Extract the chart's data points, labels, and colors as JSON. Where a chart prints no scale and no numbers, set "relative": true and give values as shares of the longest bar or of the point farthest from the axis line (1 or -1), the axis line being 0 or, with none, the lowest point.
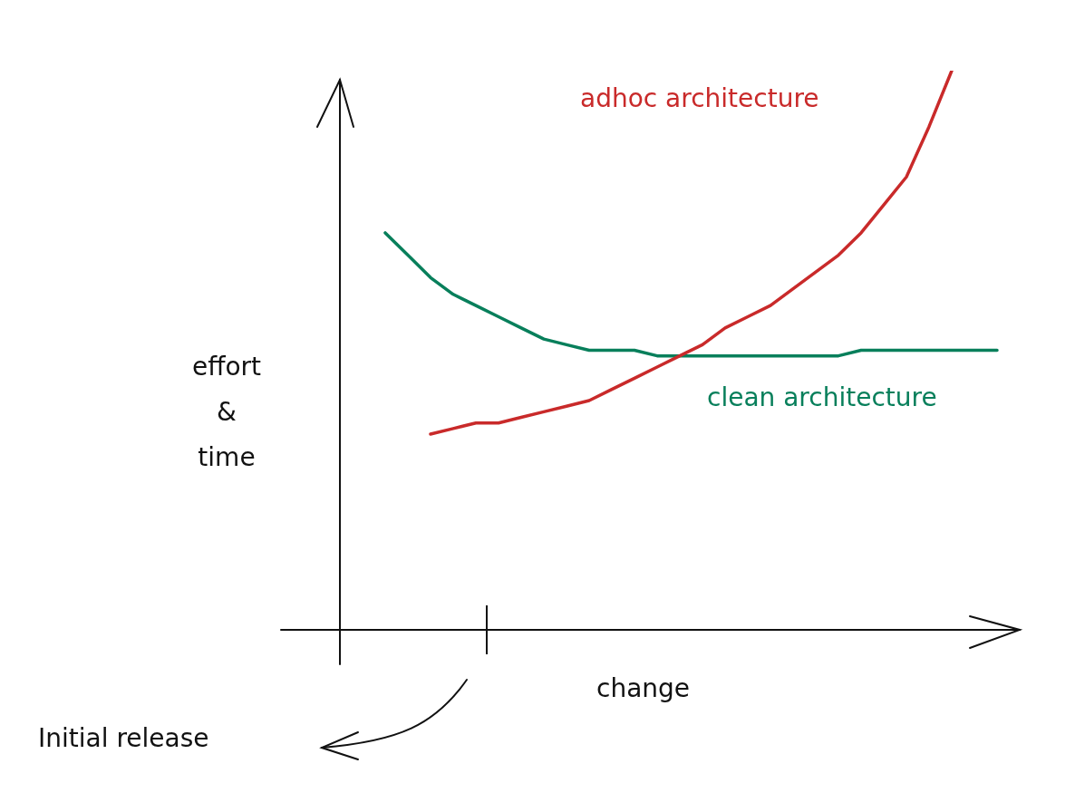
{
  "chart_data": {
    "type": "line",
    "relative": true,
    "xlabel": "change",
    "ylabel": "effort & time",
    "legend": false,
    "marker": "none",
    "line_style": "solid",
    "categories": [
      null,
      null,
      null,
      null,
      null,
      null,
      null,
      null,
      null,
      null,
      null,
      null,
      null,
      null,
      null,
      null,
      null,
      null,
      null,
      null,
      null,
      null,
      null,
      null,
      null,
      null,
      null,
      null,
      null,
      null,
      null
    ],
    "series": [
      {
        "name": "adhoc architecture",
        "color": "#c92a2a",
        "values": [
          null,
          null,
          null,
          null,
          0.35,
          0.36,
          0.37,
          0.37,
          0.38,
          0.39,
          0.4,
          0.41,
          0.43,
          0.45,
          0.47,
          0.49,
          0.51,
          0.54,
          0.56,
          0.58,
          0.61,
          0.64,
          0.67,
          0.71,
          0.76,
          0.81,
          0.9,
          1,
          null,
          null,
          null
        ]
      },
      {
        "name": "clean architecture",
        "color": "#087f5b",
        "values": [
          null,
          null,
          0.71,
          0.67,
          0.63,
          0.6,
          0.58,
          0.56,
          0.54,
          0.52,
          0.51,
          0.5,
          0.5,
          0.5,
          0.49,
          0.49,
          0.49,
          0.49,
          0.49,
          0.49,
          0.49,
          0.49,
          0.49,
          0.5,
          0.5,
          0.5,
          0.5,
          0.5,
          0.5,
          0.5,
          null
        ]
      }
    ],
    "annotations": [
      "Initial release"
    ]
  }
}
